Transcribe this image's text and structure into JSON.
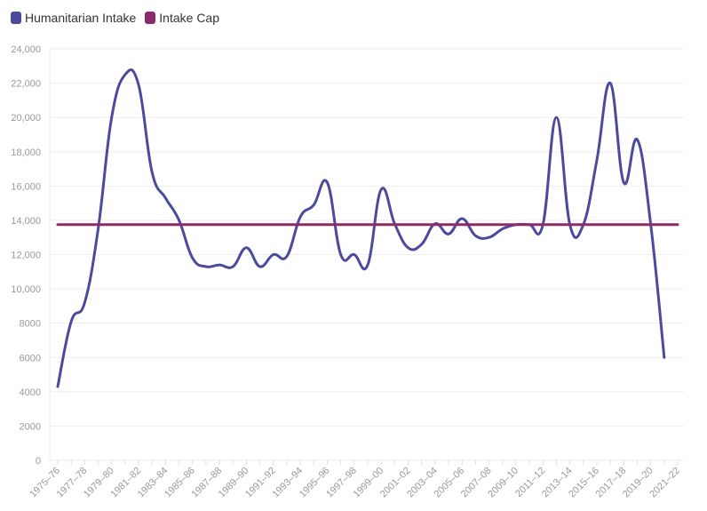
{
  "legend": {
    "items": [
      {
        "label": "Humanitarian Intake",
        "color": "#4b4a9c"
      },
      {
        "label": "Intake Cap",
        "color": "#8e2a6b"
      }
    ]
  },
  "chart_data": {
    "type": "line",
    "categories": [
      "1975–76",
      "1976–77",
      "1977–78",
      "1978–79",
      "1979–80",
      "1980–81",
      "1981–82",
      "1982–83",
      "1983–84",
      "1984–85",
      "1985–86",
      "1986–87",
      "1987–88",
      "1988–89",
      "1989–90",
      "1990–91",
      "1991–92",
      "1992–93",
      "1993–94",
      "1994–95",
      "1995–96",
      "1996–97",
      "1997–98",
      "1998–99",
      "1999–00",
      "2000–01",
      "2001–02",
      "2002–03",
      "2003–04",
      "2004–05",
      "2005–06",
      "2006–07",
      "2007–08",
      "2008–09",
      "2009–10",
      "2010–11",
      "2011–12",
      "2012–13",
      "2013–14",
      "2014–15",
      "2015–16",
      "2016–17",
      "2017–18",
      "2018–19",
      "2019–20",
      "2020–21",
      "2021–22"
    ],
    "x_tick_labels": [
      "1975–76",
      "1977–78",
      "1979–80",
      "1981–82",
      "1983–84",
      "1985–86",
      "1987–88",
      "1989–90",
      "1991–92",
      "1993–94",
      "1995–96",
      "1997–98",
      "1999–00",
      "2001–02",
      "2003–04",
      "2005–06",
      "2007–08",
      "2009–10",
      "2011–12",
      "2013–14",
      "2015–16",
      "2017–18",
      "2019–20",
      "2021–22"
    ],
    "series": [
      {
        "name": "Humanitarian Intake",
        "color": "#4b4a9c",
        "values": [
          4300,
          8100,
          9200,
          13500,
          20000,
          22500,
          21900,
          16800,
          15300,
          14000,
          11800,
          11300,
          11400,
          11300,
          12400,
          11300,
          12000,
          11900,
          14200,
          14900,
          16200,
          12000,
          12000,
          11400,
          15800,
          13800,
          12400,
          12600,
          13800,
          13200,
          14100,
          13100,
          13000,
          13500,
          13750,
          13750,
          13750,
          20000,
          13750,
          13750,
          17500,
          22000,
          16200,
          18700,
          13750,
          6000,
          null
        ]
      },
      {
        "name": "Intake Cap",
        "color": "#8e2a6b",
        "values": [
          13750,
          13750,
          13750,
          13750,
          13750,
          13750,
          13750,
          13750,
          13750,
          13750,
          13750,
          13750,
          13750,
          13750,
          13750,
          13750,
          13750,
          13750,
          13750,
          13750,
          13750,
          13750,
          13750,
          13750,
          13750,
          13750,
          13750,
          13750,
          13750,
          13750,
          13750,
          13750,
          13750,
          13750,
          13750,
          13750,
          13750,
          13750,
          13750,
          13750,
          13750,
          13750,
          13750,
          13750,
          13750,
          13750,
          13750
        ]
      }
    ],
    "y_ticks": [
      "0",
      "2000",
      "4000",
      "6000",
      "8000",
      "10,000",
      "12,000",
      "14,000",
      "16,000",
      "18,000",
      "20,000",
      "22,000",
      "24,000"
    ],
    "ylim": [
      0,
      24000
    ],
    "grid": true,
    "legend_position": "top-left"
  }
}
